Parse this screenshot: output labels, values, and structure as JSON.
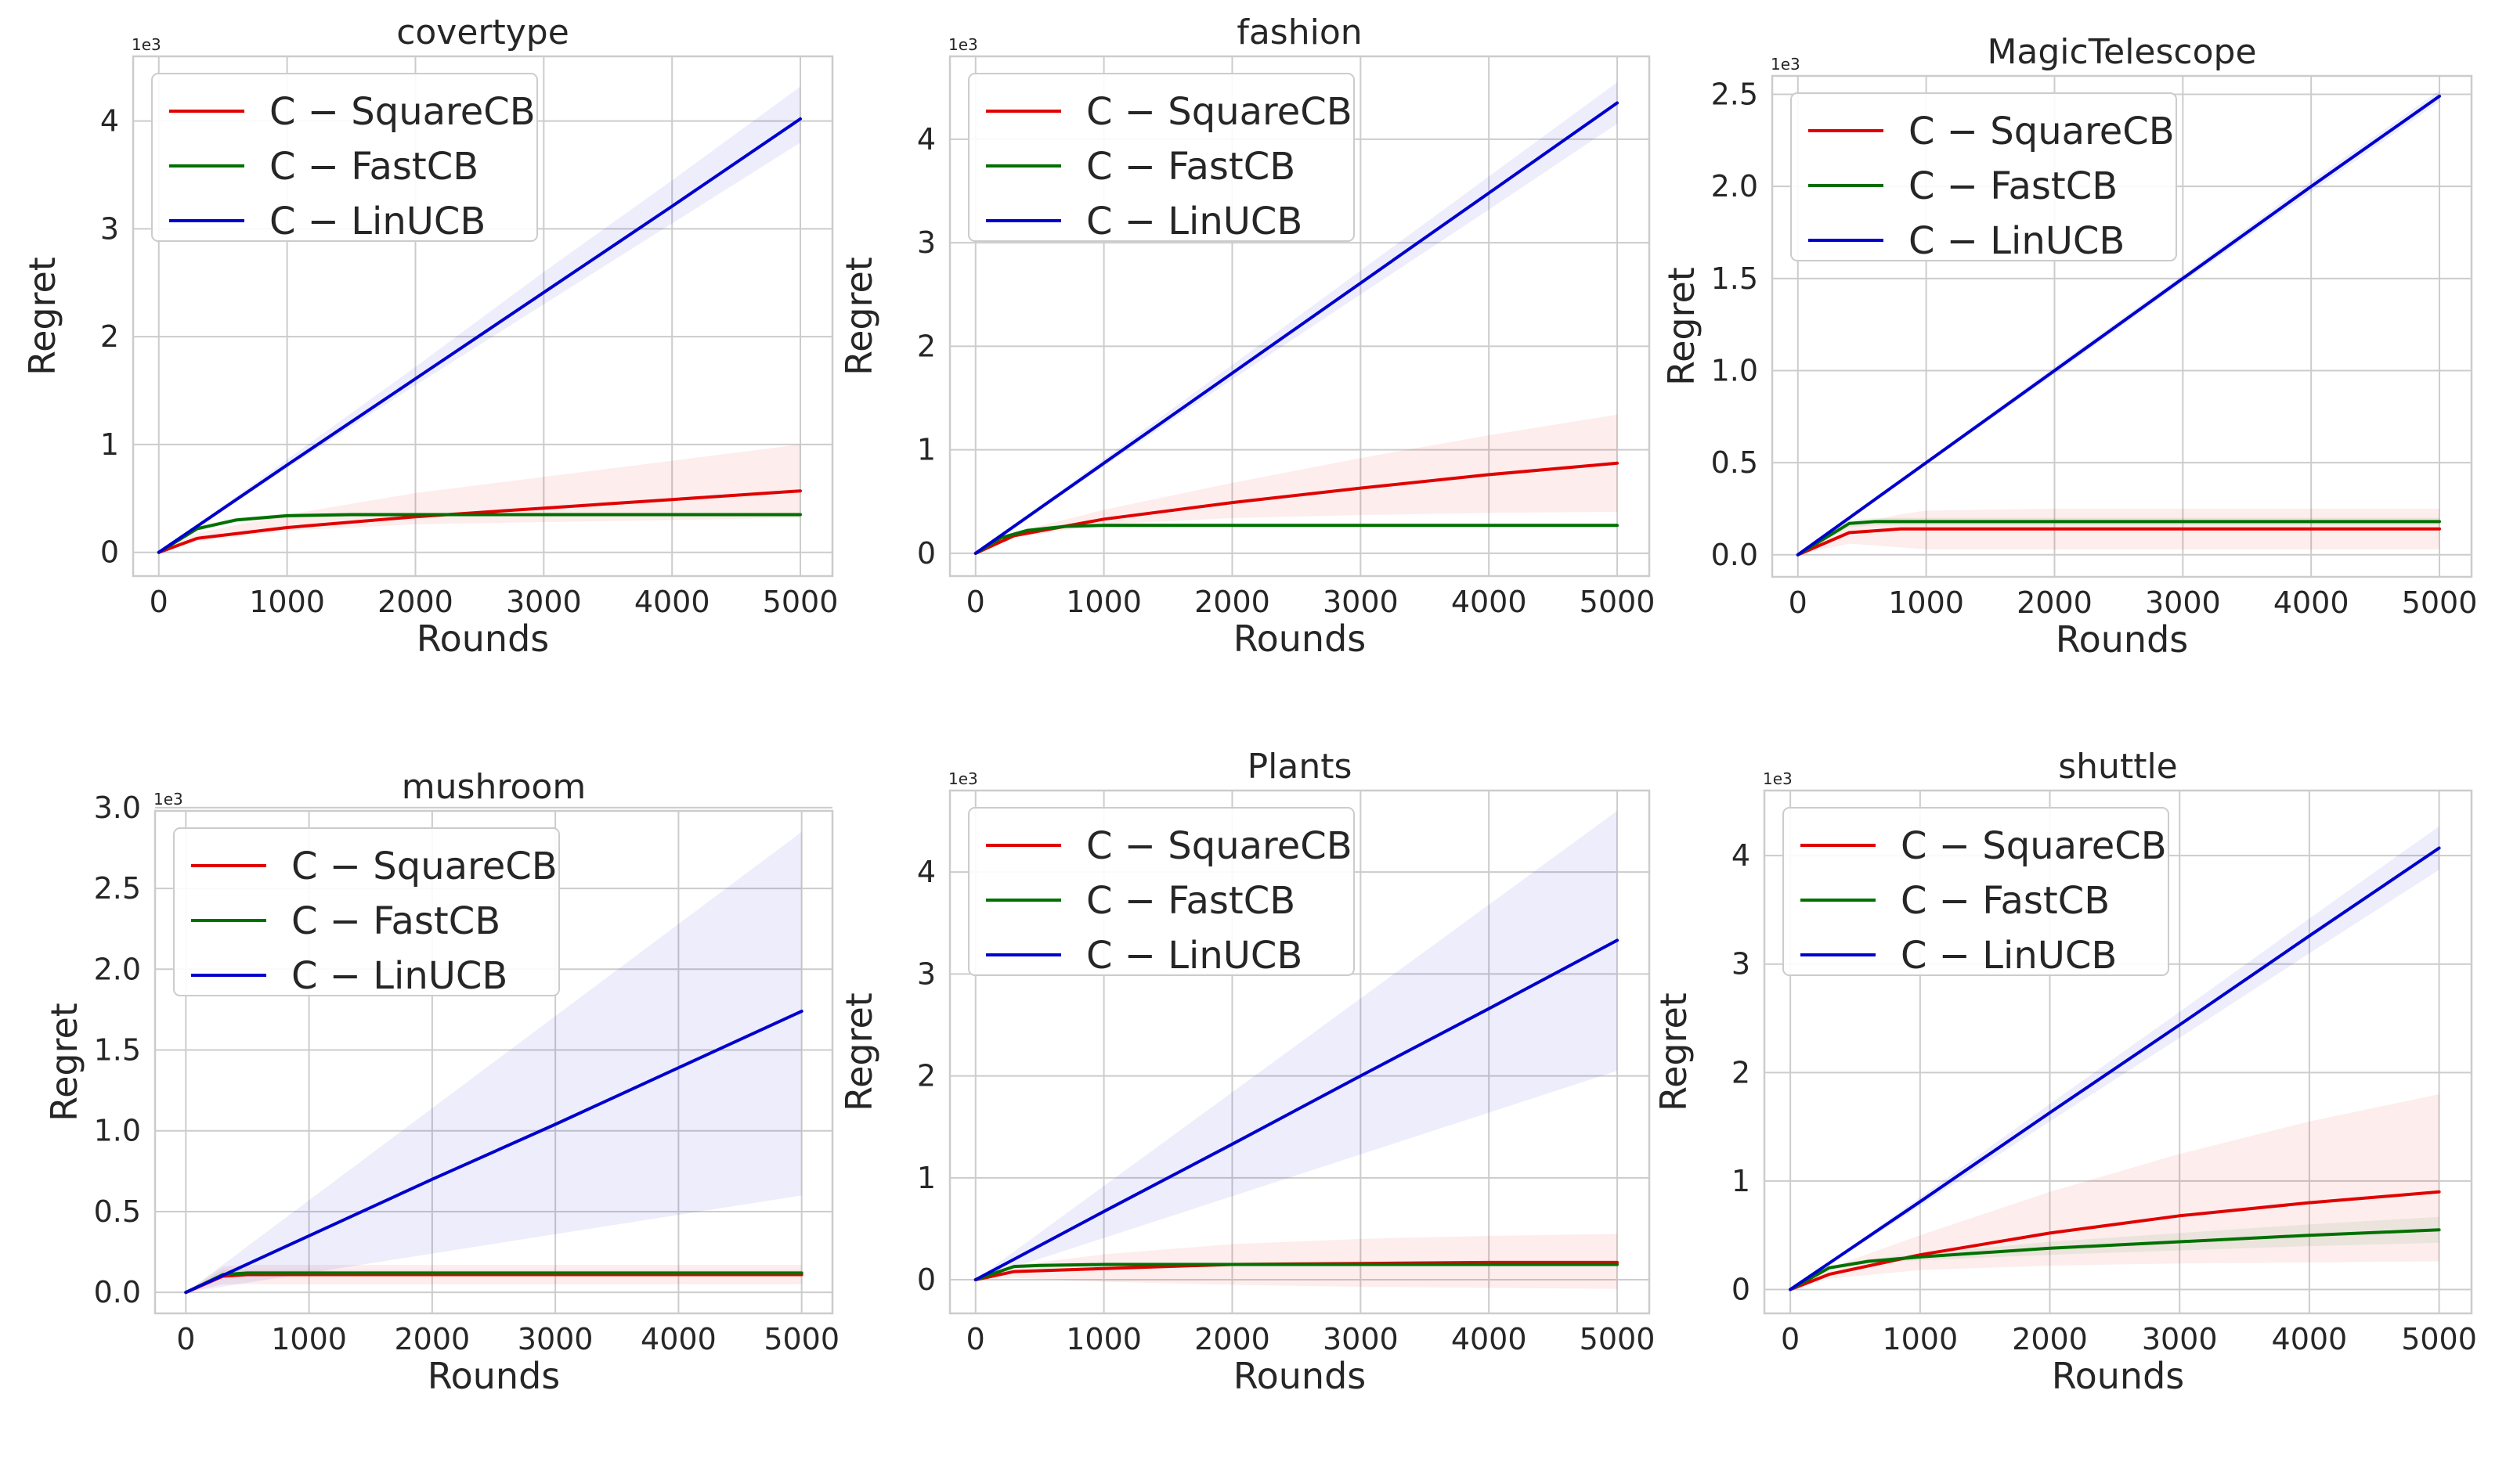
{
  "chart_data": [
    {
      "type": "line",
      "title": "covertype",
      "xlabel": "Rounds",
      "ylabel": "Regret",
      "y_exponent_label": "1e3",
      "xlim": [
        -200,
        5250
      ],
      "ylim": [
        -0.22,
        4.6
      ],
      "xticks": [
        0,
        1000,
        2000,
        3000,
        4000,
        5000
      ],
      "yticks": [
        0,
        1,
        2,
        3,
        4
      ],
      "ytick_labels": [
        "0",
        "1",
        "2",
        "3",
        "4"
      ],
      "grid": true,
      "legend_position": "top-left",
      "series": [
        {
          "name": "C − SquareCB",
          "color": "#e00000",
          "x": [
            0,
            300,
            1000,
            2000,
            3000,
            4000,
            5000
          ],
          "y": [
            0,
            0.13,
            0.23,
            0.33,
            0.41,
            0.49,
            0.57
          ],
          "band_low": [
            0,
            0.1,
            0.2,
            0.26,
            0.28,
            0.3,
            0.32
          ],
          "band_high": [
            0,
            0.18,
            0.35,
            0.55,
            0.7,
            0.85,
            1.0
          ]
        },
        {
          "name": "C − FastCB",
          "color": "#007000",
          "x": [
            0,
            300,
            600,
            1000,
            1500,
            2000,
            3000,
            4000,
            5000
          ],
          "y": [
            0,
            0.22,
            0.3,
            0.34,
            0.35,
            0.35,
            0.35,
            0.35,
            0.35
          ],
          "band_low": [
            0,
            0.2,
            0.28,
            0.32,
            0.33,
            0.33,
            0.33,
            0.33,
            0.33
          ],
          "band_high": [
            0,
            0.24,
            0.32,
            0.36,
            0.37,
            0.37,
            0.37,
            0.37,
            0.37
          ]
        },
        {
          "name": "C − LinUCB",
          "color": "#0000cc",
          "x": [
            0,
            1000,
            2000,
            3000,
            4000,
            5000
          ],
          "y": [
            0,
            0.81,
            1.61,
            2.41,
            3.21,
            4.02
          ],
          "band_low": [
            0,
            0.78,
            1.55,
            2.3,
            3.05,
            3.8
          ],
          "band_high": [
            0,
            0.86,
            1.72,
            2.6,
            3.45,
            4.32
          ]
        }
      ]
    },
    {
      "type": "line",
      "title": "fashion",
      "xlabel": "Rounds",
      "ylabel": "Regret",
      "y_exponent_label": "1e3",
      "xlim": [
        -200,
        5250
      ],
      "ylim": [
        -0.22,
        4.8
      ],
      "xticks": [
        0,
        1000,
        2000,
        3000,
        4000,
        5000
      ],
      "yticks": [
        0,
        1,
        2,
        3,
        4
      ],
      "ytick_labels": [
        "0",
        "1",
        "2",
        "3",
        "4"
      ],
      "grid": true,
      "legend_position": "top-left",
      "series": [
        {
          "name": "C − SquareCB",
          "color": "#e00000",
          "x": [
            0,
            300,
            1000,
            2000,
            3000,
            4000,
            5000
          ],
          "y": [
            0,
            0.17,
            0.33,
            0.49,
            0.63,
            0.76,
            0.87
          ],
          "band_low": [
            0,
            0.15,
            0.28,
            0.34,
            0.37,
            0.39,
            0.4
          ],
          "band_high": [
            0,
            0.2,
            0.42,
            0.68,
            0.92,
            1.14,
            1.34
          ]
        },
        {
          "name": "C − FastCB",
          "color": "#007000",
          "x": [
            0,
            200,
            400,
            700,
            1000,
            2000,
            3000,
            4000,
            5000
          ],
          "y": [
            0,
            0.15,
            0.22,
            0.26,
            0.27,
            0.27,
            0.27,
            0.27,
            0.27
          ],
          "band_low": [
            0,
            0.13,
            0.2,
            0.24,
            0.25,
            0.25,
            0.25,
            0.25,
            0.25
          ],
          "band_high": [
            0,
            0.17,
            0.24,
            0.28,
            0.29,
            0.29,
            0.29,
            0.29,
            0.29
          ]
        },
        {
          "name": "C − LinUCB",
          "color": "#0000cc",
          "x": [
            0,
            1000,
            2000,
            3000,
            4000,
            5000
          ],
          "y": [
            0,
            0.87,
            1.74,
            2.61,
            3.48,
            4.35
          ],
          "band_low": [
            0,
            0.84,
            1.68,
            2.5,
            3.32,
            4.15
          ],
          "band_high": [
            0,
            0.91,
            1.82,
            2.73,
            3.64,
            4.55
          ]
        }
      ]
    },
    {
      "type": "line",
      "title": "MagicTelescope",
      "xlabel": "Rounds",
      "ylabel": "Regret",
      "y_exponent_label": "1e3",
      "xlim": [
        -200,
        5250
      ],
      "ylim": [
        -0.12,
        2.6
      ],
      "xticks": [
        0,
        1000,
        2000,
        3000,
        4000,
        5000
      ],
      "yticks": [
        0,
        0.5,
        1,
        1.5,
        2,
        2.5
      ],
      "ytick_labels": [
        "0.0",
        "0.5",
        "1.0",
        "1.5",
        "2.0",
        "2.5"
      ],
      "grid": true,
      "legend_position": "top-left",
      "series": [
        {
          "name": "C − SquareCB",
          "color": "#e00000",
          "x": [
            0,
            400,
            800,
            1000,
            2000,
            3000,
            4000,
            5000
          ],
          "y": [
            0,
            0.12,
            0.14,
            0.14,
            0.14,
            0.14,
            0.14,
            0.14
          ],
          "band_low": [
            0,
            0.06,
            0.04,
            0.03,
            0.03,
            0.03,
            0.03,
            0.03
          ],
          "band_high": [
            0,
            0.16,
            0.22,
            0.24,
            0.25,
            0.25,
            0.25,
            0.25
          ]
        },
        {
          "name": "C − FastCB",
          "color": "#007000",
          "x": [
            0,
            400,
            600,
            1000,
            2000,
            3000,
            4000,
            5000
          ],
          "y": [
            0,
            0.17,
            0.18,
            0.18,
            0.18,
            0.18,
            0.18,
            0.18
          ],
          "band_low": [
            0,
            0.15,
            0.16,
            0.16,
            0.16,
            0.16,
            0.16,
            0.16
          ],
          "band_high": [
            0,
            0.19,
            0.2,
            0.2,
            0.2,
            0.2,
            0.2,
            0.2
          ]
        },
        {
          "name": "C − LinUCB",
          "color": "#0000cc",
          "x": [
            0,
            1000,
            2000,
            3000,
            4000,
            5000
          ],
          "y": [
            0,
            0.5,
            1.0,
            1.5,
            2.0,
            2.49
          ],
          "band_low": [
            0,
            0.49,
            0.98,
            1.48,
            1.97,
            2.46
          ],
          "band_high": [
            0,
            0.51,
            1.02,
            1.52,
            2.03,
            2.52
          ]
        }
      ]
    },
    {
      "type": "line",
      "title": "mushroom",
      "xlabel": "Rounds",
      "ylabel": "Regret",
      "y_exponent_label": "1e3",
      "xlim": [
        -250,
        5250
      ],
      "ylim": [
        -0.13,
        2.98
      ],
      "xticks": [
        0,
        1000,
        2000,
        3000,
        4000,
        5000
      ],
      "yticks": [
        0,
        0.5,
        1,
        1.5,
        2,
        2.5,
        3
      ],
      "ytick_labels": [
        "0.0",
        "0.5",
        "1.0",
        "1.5",
        "2.0",
        "2.5",
        "3.0"
      ],
      "grid": true,
      "legend_position": "top-left",
      "series": [
        {
          "name": "C − SquareCB",
          "color": "#e00000",
          "x": [
            0,
            300,
            500,
            1000,
            2000,
            3000,
            4000,
            5000
          ],
          "y": [
            0,
            0.1,
            0.11,
            0.11,
            0.11,
            0.11,
            0.11,
            0.11
          ],
          "band_low": [
            0,
            0.05,
            0.05,
            0.05,
            0.05,
            0.05,
            0.05,
            0.05
          ],
          "band_high": [
            0,
            0.16,
            0.17,
            0.17,
            0.17,
            0.17,
            0.17,
            0.17
          ]
        },
        {
          "name": "C − FastCB",
          "color": "#007000",
          "x": [
            0,
            300,
            500,
            1000,
            2000,
            3000,
            4000,
            5000
          ],
          "y": [
            0,
            0.11,
            0.12,
            0.12,
            0.12,
            0.12,
            0.12,
            0.12
          ],
          "band_low": [
            0,
            0.09,
            0.1,
            0.1,
            0.1,
            0.1,
            0.1,
            0.1
          ],
          "band_high": [
            0,
            0.14,
            0.14,
            0.14,
            0.14,
            0.14,
            0.14,
            0.14
          ]
        },
        {
          "name": "C − LinUCB",
          "color": "#0000cc",
          "x": [
            0,
            1000,
            2000,
            3000,
            4000,
            5000
          ],
          "y": [
            0,
            0.35,
            0.7,
            1.04,
            1.39,
            1.74
          ],
          "band_low": [
            0,
            0.12,
            0.24,
            0.36,
            0.48,
            0.6
          ],
          "band_high": [
            0,
            0.57,
            1.14,
            1.71,
            2.28,
            2.85
          ]
        }
      ]
    },
    {
      "type": "line",
      "title": "Plants",
      "xlabel": "Rounds",
      "ylabel": "Regret",
      "y_exponent_label": "1e3",
      "xlim": [
        -200,
        5250
      ],
      "ylim": [
        -0.33,
        4.8
      ],
      "xticks": [
        0,
        1000,
        2000,
        3000,
        4000,
        5000
      ],
      "yticks": [
        0,
        1,
        2,
        3,
        4
      ],
      "ytick_labels": [
        "0",
        "1",
        "2",
        "3",
        "4"
      ],
      "grid": true,
      "legend_position": "top-left",
      "series": [
        {
          "name": "C − SquareCB",
          "color": "#e00000",
          "x": [
            0,
            300,
            1000,
            2000,
            3000,
            4000,
            5000
          ],
          "y": [
            0,
            0.08,
            0.11,
            0.15,
            0.16,
            0.17,
            0.17
          ],
          "band_low": [
            0,
            0.02,
            -0.02,
            -0.05,
            -0.07,
            -0.08,
            -0.09
          ],
          "band_high": [
            0,
            0.14,
            0.25,
            0.35,
            0.4,
            0.43,
            0.45
          ]
        },
        {
          "name": "C − FastCB",
          "color": "#007000",
          "x": [
            0,
            300,
            500,
            1000,
            2000,
            3000,
            4000,
            5000
          ],
          "y": [
            0,
            0.13,
            0.14,
            0.15,
            0.15,
            0.15,
            0.15,
            0.15
          ],
          "band_low": [
            0,
            0.11,
            0.12,
            0.13,
            0.13,
            0.13,
            0.13,
            0.13
          ],
          "band_high": [
            0,
            0.15,
            0.16,
            0.17,
            0.17,
            0.17,
            0.17,
            0.17
          ]
        },
        {
          "name": "C − LinUCB",
          "color": "#0000cc",
          "x": [
            0,
            1000,
            2000,
            3000,
            4000,
            5000
          ],
          "y": [
            0,
            0.67,
            1.33,
            2.0,
            2.66,
            3.33
          ],
          "band_low": [
            0,
            0.41,
            0.82,
            1.23,
            1.64,
            2.05
          ],
          "band_high": [
            0,
            0.92,
            1.84,
            2.76,
            3.68,
            4.6
          ]
        }
      ]
    },
    {
      "type": "line",
      "title": "shuttle",
      "xlabel": "Rounds",
      "ylabel": "Regret",
      "y_exponent_label": "1e3",
      "xlim": [
        -200,
        5250
      ],
      "ylim": [
        -0.22,
        4.6
      ],
      "xticks": [
        0,
        1000,
        2000,
        3000,
        4000,
        5000
      ],
      "yticks": [
        0,
        1,
        2,
        3,
        4
      ],
      "ytick_labels": [
        "0",
        "1",
        "2",
        "3",
        "4"
      ],
      "grid": true,
      "legend_position": "top-left",
      "series": [
        {
          "name": "C − SquareCB",
          "color": "#e00000",
          "x": [
            0,
            300,
            1000,
            2000,
            3000,
            4000,
            5000
          ],
          "y": [
            0,
            0.14,
            0.32,
            0.52,
            0.68,
            0.8,
            0.9
          ],
          "band_low": [
            0,
            0.1,
            0.18,
            0.22,
            0.24,
            0.25,
            0.26
          ],
          "band_high": [
            0,
            0.2,
            0.5,
            0.9,
            1.25,
            1.55,
            1.8
          ]
        },
        {
          "name": "C − FastCB",
          "color": "#007000",
          "x": [
            0,
            300,
            600,
            1000,
            2000,
            3000,
            4000,
            5000
          ],
          "y": [
            0,
            0.2,
            0.26,
            0.3,
            0.38,
            0.44,
            0.5,
            0.55
          ],
          "band_low": [
            0,
            0.18,
            0.24,
            0.27,
            0.32,
            0.36,
            0.4,
            0.43
          ],
          "band_high": [
            0,
            0.22,
            0.28,
            0.33,
            0.44,
            0.52,
            0.6,
            0.67
          ]
        },
        {
          "name": "C − LinUCB",
          "color": "#0000cc",
          "x": [
            0,
            1000,
            2000,
            3000,
            4000,
            5000
          ],
          "y": [
            0,
            0.81,
            1.63,
            2.44,
            3.26,
            4.07
          ],
          "band_low": [
            0,
            0.77,
            1.55,
            2.32,
            3.1,
            3.87
          ],
          "band_high": [
            0,
            0.85,
            1.71,
            2.56,
            3.42,
            4.27
          ]
        }
      ]
    }
  ]
}
